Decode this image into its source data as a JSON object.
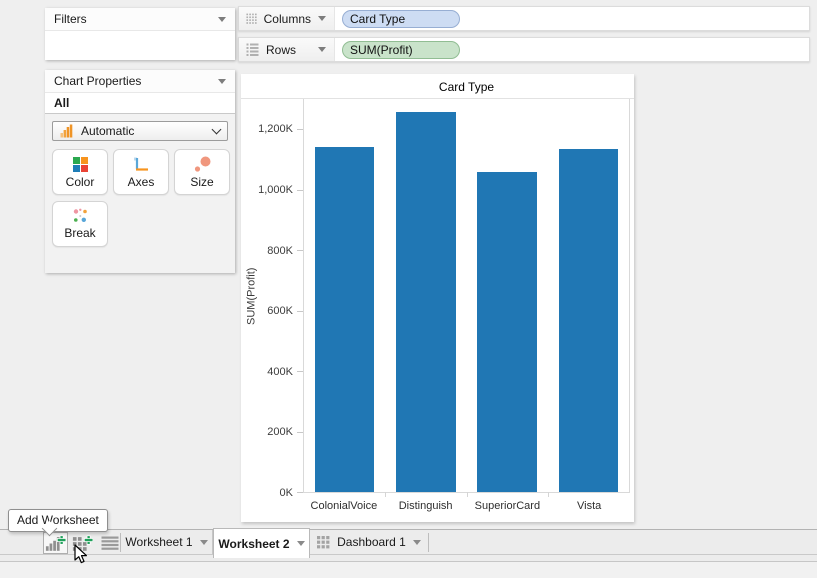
{
  "colors": {
    "bar_blue": "#2077b4",
    "pill_dimension_bg": "#cddcf3",
    "pill_dimension_border": "#97aed3",
    "pill_measure_bg": "#c9e3ca",
    "pill_measure_border": "#91bd93",
    "add_plus_green": "#1fa05a",
    "mark_icon_orange": "#ef9426",
    "window_bg": "#efefef"
  },
  "shelves": {
    "columns": {
      "label": "Columns",
      "pill": "Card Type"
    },
    "rows": {
      "label": "Rows",
      "pill": "SUM(Profit)"
    }
  },
  "sidebar": {
    "filters_title": "Filters",
    "chart_properties_title": "Chart Properties",
    "scope": "All",
    "mark_dropdown": "Automatic",
    "buttons": {
      "color": "Color",
      "axes": "Axes",
      "size": "Size",
      "break": "Break"
    }
  },
  "chart_data": {
    "type": "bar",
    "title": "Card Type",
    "xlabel": "",
    "ylabel": "SUM(Profit)",
    "categories": [
      "ColonialVoice",
      "Distinguish",
      "SuperiorCard",
      "Vista"
    ],
    "values": [
      1141,
      1258,
      1058,
      1135
    ],
    "unit": "K",
    "ylim": [
      0,
      1300
    ],
    "yticks": [
      {
        "v": 0,
        "label": "0K"
      },
      {
        "v": 200,
        "label": "200K"
      },
      {
        "v": 400,
        "label": "400K"
      },
      {
        "v": 600,
        "label": "600K"
      },
      {
        "v": 800,
        "label": "800K"
      },
      {
        "v": 1000,
        "label": "1,000K"
      },
      {
        "v": 1200,
        "label": "1,200K"
      }
    ],
    "grid": false,
    "legend": false,
    "bar_color": "#2077b4"
  },
  "sheet_tabs": {
    "items": [
      {
        "label": "Worksheet 1",
        "active": false
      },
      {
        "label": "Worksheet 2",
        "active": true
      },
      {
        "label": "Dashboard 1",
        "active": false
      }
    ]
  },
  "tooltip": {
    "text": "Add Worksheet"
  },
  "icons": [
    "columns-shelf-icon",
    "rows-shelf-icon",
    "collapse-arrow-icon",
    "mark-type-bars-icon",
    "color-swatches-icon",
    "axes-icon",
    "size-circles-icon",
    "break-dots-icon",
    "add-worksheet-icon",
    "add-dashboard-icon",
    "sheet-list-icon",
    "dashboard-grid-icon",
    "cursor-arrow"
  ]
}
